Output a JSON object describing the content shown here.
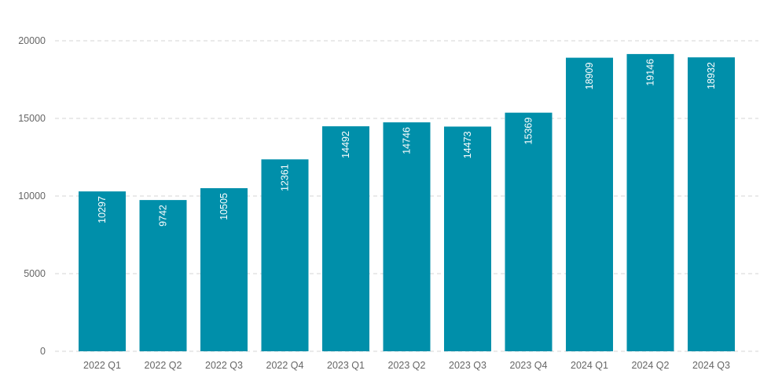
{
  "chart_data": {
    "type": "bar",
    "categories": [
      "2022 Q1",
      "2022 Q2",
      "2022 Q3",
      "2022 Q4",
      "2023 Q1",
      "2023 Q2",
      "2023 Q3",
      "2023 Q4",
      "2024 Q1",
      "2024 Q2",
      "2024 Q3"
    ],
    "values": [
      10297,
      9742,
      10505,
      12361,
      14492,
      14746,
      14473,
      15369,
      18909,
      19146,
      18932
    ],
    "ylim": [
      0,
      20000
    ],
    "yticks": [
      0,
      5000,
      10000,
      15000,
      20000
    ],
    "grid": true,
    "data_labels": true,
    "bar_color": "#008faa"
  }
}
